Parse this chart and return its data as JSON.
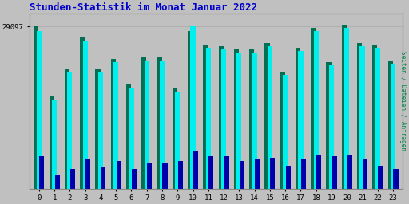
{
  "title": "Stunden-Statistik im Monat Januar 2022",
  "ylabel_right": "Seiten / Dateien / Anfragen",
  "ytick_label": "29097",
  "hours": [
    0,
    1,
    2,
    3,
    4,
    5,
    6,
    7,
    8,
    9,
    10,
    11,
    12,
    13,
    14,
    15,
    16,
    17,
    18,
    19,
    20,
    21,
    22,
    23
  ],
  "dateien": [
    1.0,
    0.57,
    0.74,
    0.93,
    0.74,
    0.8,
    0.64,
    0.81,
    0.81,
    0.62,
    0.97,
    0.89,
    0.88,
    0.86,
    0.86,
    0.9,
    0.72,
    0.87,
    0.99,
    0.78,
    1.01,
    0.9,
    0.89,
    0.79
  ],
  "seiten": [
    0.97,
    0.55,
    0.72,
    0.91,
    0.72,
    0.78,
    0.62,
    0.79,
    0.79,
    0.6,
    1.0,
    0.87,
    0.86,
    0.84,
    0.84,
    0.88,
    0.7,
    0.85,
    0.97,
    0.76,
    0.99,
    0.88,
    0.87,
    0.77
  ],
  "anfragen": [
    0.2,
    0.08,
    0.12,
    0.18,
    0.13,
    0.17,
    0.12,
    0.16,
    0.16,
    0.17,
    0.23,
    0.2,
    0.2,
    0.17,
    0.18,
    0.19,
    0.14,
    0.18,
    0.21,
    0.2,
    0.21,
    0.18,
    0.14,
    0.12
  ],
  "color_seiten": "#00EEEE",
  "color_dateien": "#007055",
  "color_anfragen": "#0000AA",
  "bg_plot": "#C0C0C0",
  "bg_fig": "#C0C0C0",
  "title_color": "#0000CC",
  "ylabel_right_color": "#008844",
  "grid_color": "#AAAAAA",
  "ylim": [
    0,
    1.08
  ],
  "max_value": "29097"
}
